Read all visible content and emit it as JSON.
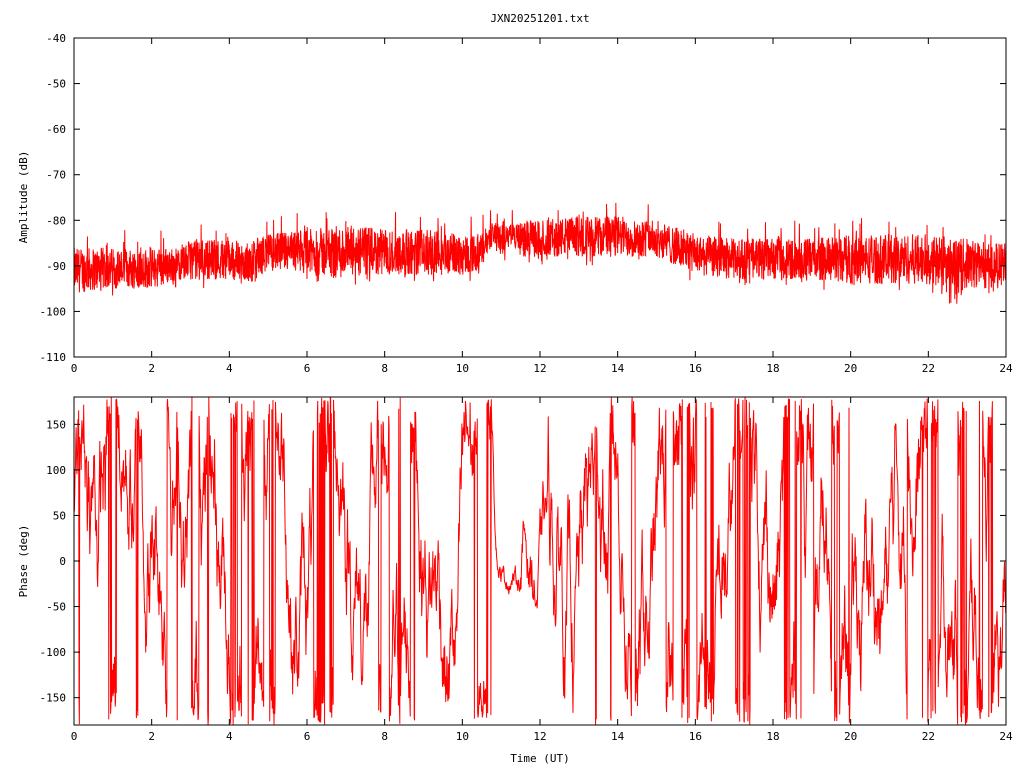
{
  "chart_data": [
    {
      "type": "line",
      "title": "JXN20251201.txt",
      "xlabel": "",
      "ylabel": "Amplitude (dB)",
      "xlim": [
        0,
        24
      ],
      "ylim": [
        -110,
        -40
      ],
      "x_ticks": [
        "0",
        "2",
        "4",
        "6",
        "8",
        "10",
        "12",
        "14",
        "16",
        "18",
        "20",
        "22",
        "24"
      ],
      "y_ticks": [
        "-40",
        "-50",
        "-60",
        "-70",
        "-80",
        "-90",
        "-100",
        "-110"
      ],
      "color": "#ff0000",
      "envelope": {
        "x": [
          0,
          1,
          2,
          2.8,
          3,
          4,
          4.5,
          5,
          6,
          7,
          8,
          9,
          10,
          10.5,
          10.8,
          11,
          11.3,
          11.5,
          12,
          13,
          14,
          15,
          16,
          17,
          18,
          19,
          20,
          21,
          22,
          22.6,
          23,
          24
        ],
        "upper": [
          -86,
          -86,
          -86,
          -86,
          -84,
          -84,
          -85,
          -83,
          -82,
          -81,
          -82,
          -82,
          -83,
          -83,
          -80,
          -79,
          -81,
          -80,
          -80,
          -79,
          -79,
          -80,
          -83,
          -84,
          -84,
          -84,
          -83,
          -83,
          -83,
          -84,
          -84,
          -85
        ],
        "lower": [
          -96,
          -95,
          -95,
          -93,
          -93,
          -93,
          -94,
          -91,
          -92,
          -93,
          -92,
          -92,
          -92,
          -91,
          -85,
          -88,
          -85,
          -88,
          -88,
          -88,
          -88,
          -88,
          -92,
          -93,
          -93,
          -93,
          -94,
          -94,
          -94,
          -97,
          -95,
          -95
        ]
      }
    },
    {
      "type": "line",
      "title": "",
      "xlabel": "Time (UT)",
      "ylabel": "Phase (deg)",
      "xlim": [
        0,
        24
      ],
      "ylim": [
        -180,
        180
      ],
      "x_ticks": [
        "0",
        "2",
        "4",
        "6",
        "8",
        "10",
        "12",
        "14",
        "16",
        "18",
        "20",
        "22",
        "24"
      ],
      "y_ticks": [
        "150",
        "100",
        "50",
        "0",
        "-50",
        "-100",
        "-150"
      ],
      "color": "#ff0000"
    }
  ]
}
